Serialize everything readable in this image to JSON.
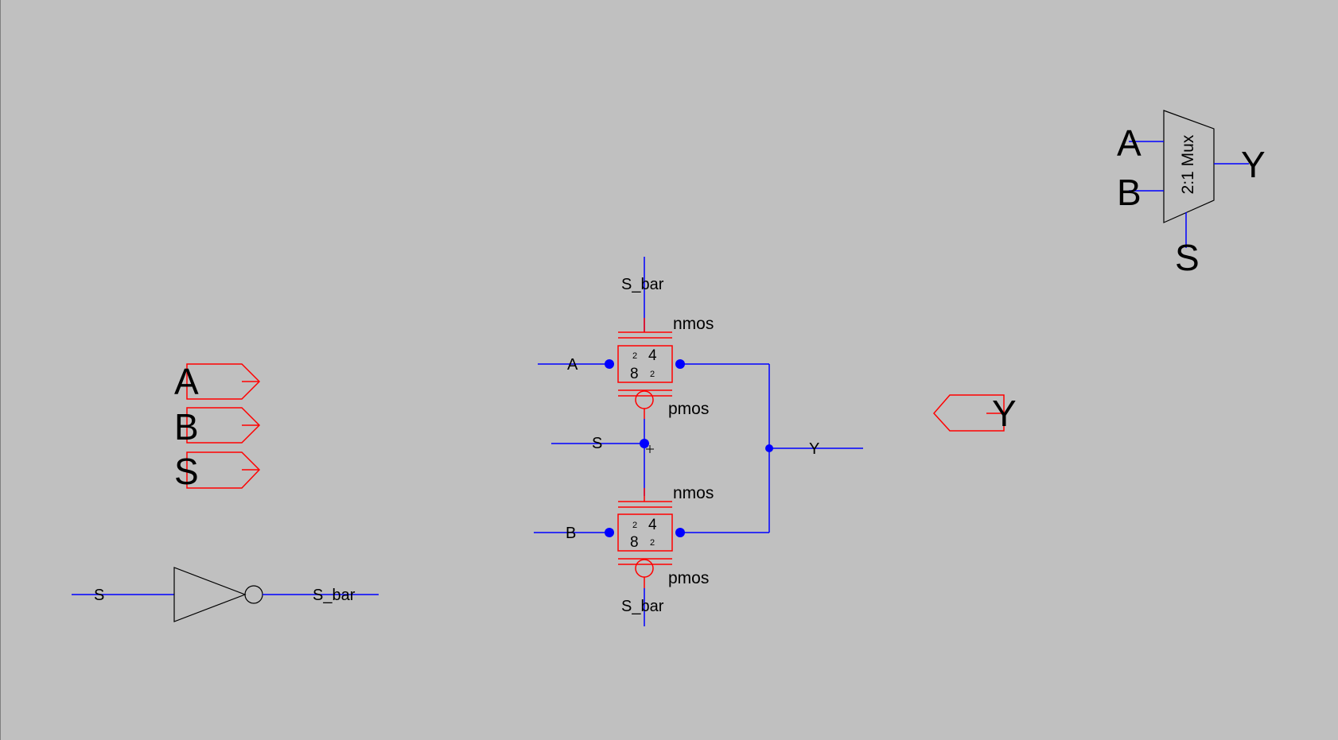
{
  "colors": {
    "background": "#c0c0c0",
    "wire": "#0000ff",
    "pin_outline": "#ff0000",
    "symbol_outline": "#000000",
    "text": "#000000"
  },
  "input_pins": [
    {
      "label": "A"
    },
    {
      "label": "B"
    },
    {
      "label": "S"
    }
  ],
  "output_pin": {
    "label": "Y"
  },
  "inverter": {
    "in_net": "S",
    "out_net": "S_bar"
  },
  "transmission_gates": [
    {
      "gate_top_net": "S_bar",
      "input_net": "A",
      "nmos_label": "nmos",
      "pmos_label": "pmos",
      "size_small_1": "2",
      "size_large_1": "4",
      "size_large_2": "8",
      "size_small_2": "2"
    },
    {
      "gate_bottom_net": "S_bar",
      "input_net": "B",
      "nmos_label": "nmos",
      "pmos_label": "pmos",
      "size_small_1": "2",
      "size_large_1": "4",
      "size_large_2": "8",
      "size_small_2": "2"
    }
  ],
  "select_net": "S",
  "output_net": "Y",
  "mux_symbol": {
    "title": "2:1 Mux",
    "in_a": "A",
    "in_b": "B",
    "out": "Y",
    "sel": "S"
  }
}
